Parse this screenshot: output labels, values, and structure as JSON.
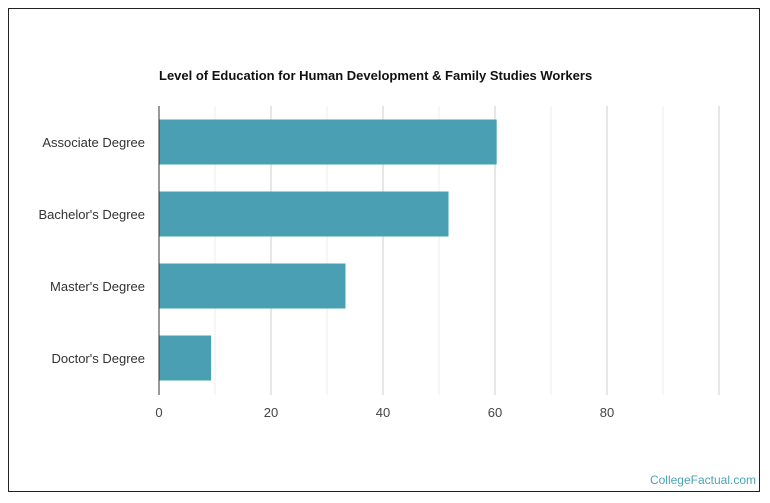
{
  "chart_data": {
    "type": "bar",
    "orientation": "horizontal",
    "title": "Level of Education for Human Development & Family Studies Workers",
    "categories": [
      "Associate Degree",
      "Bachelor's Degree",
      "Master's Degree",
      "Doctor's Degree"
    ],
    "values": [
      60.3,
      51.7,
      33.3,
      9.3
    ],
    "xlim": [
      0,
      100
    ],
    "xticks": [
      0,
      20,
      40,
      60,
      80
    ],
    "grid": true,
    "colors": {
      "bar": "#4aa0b2",
      "grid_major": "#cfcfcf",
      "grid_minor": "#ececec",
      "axis": "#333333"
    }
  },
  "watermark": "CollegeFactual.com"
}
